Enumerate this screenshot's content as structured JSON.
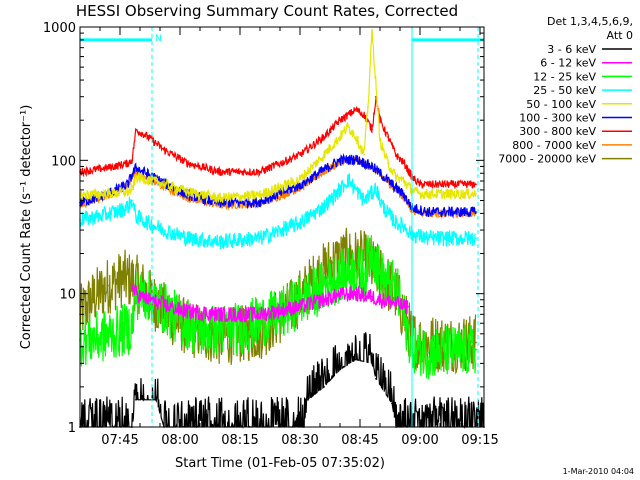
{
  "chart_data": {
    "type": "line",
    "title": "HESSI Observing Summary Count Rates, Corrected",
    "xlabel": "Start Time (01-Feb-05 07:35:02)",
    "ylabel": "Corrected Count Rate (s⁻¹ detector⁻¹)",
    "x_tick_labels": [
      "07:45",
      "08:00",
      "08:15",
      "08:30",
      "08:45",
      "09:00",
      "09:15"
    ],
    "x_tick_minutes": [
      45,
      60,
      75,
      90,
      105,
      120,
      135
    ],
    "xlim_minutes": [
      35,
      136
    ],
    "y_scale": "log",
    "ylim": [
      1,
      1000
    ],
    "y_tick_labels": [
      "1",
      "10",
      "100",
      "1000"
    ],
    "y_tick_values": [
      1,
      10,
      100,
      1000
    ],
    "legend_header": [
      "Det 1,3,4,5,6,9,",
      "Att 0"
    ],
    "legend_position": "top-right, outside plot",
    "attenuator_marker": "N",
    "footer_stamp": "1-Mar-2010 04:04",
    "intervals": [
      {
        "type": "bar",
        "start": 35,
        "end": 53,
        "y": 800
      },
      {
        "type": "bar",
        "start": 118,
        "end": 136,
        "y": 800
      }
    ],
    "vertical_markers": [
      {
        "x": 35,
        "style": "solid"
      },
      {
        "x": 53,
        "style": "dashed"
      },
      {
        "x": 118,
        "style": "solid"
      },
      {
        "x": 134.5,
        "style": "dashed"
      }
    ],
    "series": [
      {
        "name": "3 - 6 keV",
        "color": "#000000",
        "noise": 0.35,
        "x": [
          35,
          48,
          49,
          54,
          56,
          91,
          92,
          96,
          100,
          104,
          108,
          109,
          113,
          114,
          136
        ],
        "y": [
          1,
          1,
          1.6,
          1.6,
          1,
          1,
          1.6,
          2,
          2.7,
          3.2,
          3,
          2.3,
          1.5,
          1,
          1
        ]
      },
      {
        "name": "6 - 12 keV",
        "color": "#ff00ff",
        "noise": 0.06,
        "x": [
          48,
          50,
          55,
          60,
          70,
          80,
          90,
          96,
          100,
          104,
          108,
          110,
          114,
          116,
          117
        ],
        "y": [
          11,
          9.5,
          8.5,
          7.5,
          7,
          7,
          8,
          9,
          9.8,
          10,
          9.5,
          9,
          8.5,
          8,
          8
        ]
      },
      {
        "name": "12 - 25 keV",
        "color": "#00ff00",
        "noise": 0.2,
        "x": [
          35,
          40,
          45,
          48,
          49,
          52,
          58,
          65,
          75,
          85,
          92,
          97,
          101,
          104,
          106,
          108,
          110,
          112,
          114,
          118,
          122,
          126,
          130,
          134
        ],
        "y": [
          4.5,
          4.7,
          5.2,
          5.6,
          10,
          9.6,
          7,
          5.2,
          5.5,
          7,
          9.5,
          12,
          14,
          15,
          14,
          22,
          14,
          12,
          11,
          4,
          3.6,
          3.7,
          3.7,
          3.8
        ]
      },
      {
        "name": "25 - 50 keV",
        "color": "#00ffff",
        "noise": 0.06,
        "x": [
          35,
          40,
          45,
          47,
          48,
          49,
          52,
          56,
          62,
          70,
          80,
          90,
          96,
          100,
          102,
          104,
          106,
          108,
          109,
          110,
          111,
          112,
          114,
          116,
          118,
          122,
          128,
          134
        ],
        "y": [
          36,
          38,
          42,
          45,
          50,
          38,
          34,
          30,
          26,
          24.5,
          26,
          34,
          45,
          60,
          72,
          60,
          50,
          57,
          62,
          50,
          44,
          40,
          34,
          32,
          28,
          26,
          26,
          26
        ]
      },
      {
        "name": "50 - 100 keV",
        "color": "#e6e600",
        "noise": 0.04,
        "x": [
          35,
          42,
          47,
          48,
          49,
          55,
          62,
          70,
          80,
          90,
          96,
          100,
          102,
          104,
          106,
          107,
          108,
          110,
          112,
          114,
          116,
          118,
          120,
          128,
          134
        ],
        "y": [
          55,
          56,
          58,
          60,
          75,
          68,
          58,
          52,
          55,
          72,
          110,
          150,
          180,
          150,
          110,
          250,
          950,
          140,
          95,
          75,
          70,
          60,
          56,
          56,
          56
        ]
      },
      {
        "name": "100 - 300 keV",
        "color": "#0000ff",
        "noise": 0.04,
        "x": [
          35,
          42,
          47,
          48,
          49,
          55,
          62,
          70,
          80,
          90,
          96,
          100,
          104,
          108,
          110,
          114,
          116,
          118,
          122,
          128,
          134
        ],
        "y": [
          48,
          56,
          66,
          78,
          88,
          70,
          55,
          48,
          49,
          65,
          85,
          100,
          102,
          90,
          80,
          62,
          55,
          44,
          41,
          41,
          41
        ]
      },
      {
        "name": "300 - 800 keV",
        "color": "#ff0000",
        "noise": 0.03,
        "x": [
          35,
          42,
          47,
          48,
          49,
          52,
          56,
          62,
          70,
          80,
          90,
          96,
          100,
          104,
          106,
          108,
          109,
          110,
          112,
          114,
          116,
          118,
          120,
          128,
          134
        ],
        "y": [
          82,
          88,
          95,
          100,
          170,
          150,
          120,
          95,
          82,
          82,
          110,
          150,
          200,
          240,
          220,
          170,
          300,
          200,
          150,
          110,
          95,
          75,
          66,
          66,
          66
        ]
      },
      {
        "name": "800 - 7000 keV",
        "color": "#ff8000",
        "noise": 0.03,
        "x": [
          35,
          42,
          47,
          48,
          49,
          55,
          62,
          70,
          80,
          90,
          96,
          100,
          104,
          108,
          110,
          114,
          116,
          118,
          122,
          128,
          134
        ],
        "y": [
          46,
          55,
          64,
          75,
          80,
          65,
          52,
          46,
          47,
          62,
          82,
          97,
          100,
          88,
          78,
          60,
          52,
          42,
          40,
          40,
          40
        ]
      },
      {
        "name": "7000 - 20000 keV",
        "color": "#808000",
        "noise": 0.22,
        "x": [
          35,
          38,
          42,
          46,
          48,
          50,
          53,
          57,
          62,
          70,
          80,
          88,
          94,
          98,
          102,
          106,
          110,
          114,
          118,
          120,
          126,
          134
        ],
        "y": [
          7,
          9,
          11.5,
          13,
          12.5,
          11.5,
          9,
          7,
          5.5,
          4.7,
          5.2,
          8,
          13,
          17,
          19,
          18,
          14,
          10,
          4.7,
          4.3,
          4.2,
          4.3
        ]
      }
    ]
  }
}
